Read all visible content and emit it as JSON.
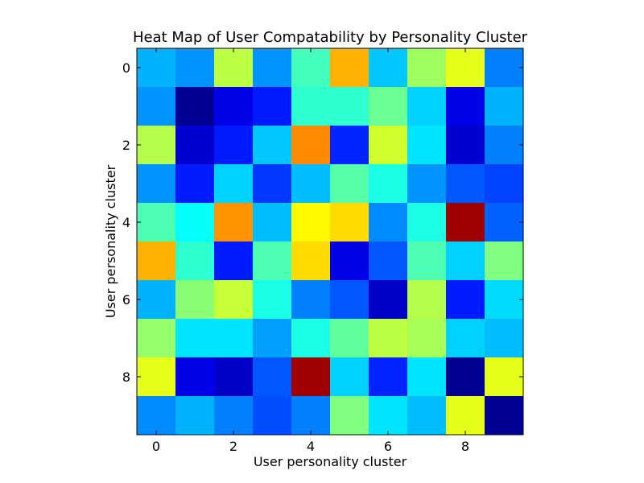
{
  "chart_data": {
    "type": "heatmap",
    "title": "Heat Map of User Compatability by Personality Cluster",
    "xlabel": "User personality cluster",
    "ylabel": "User personality cluster",
    "x_ticks": [
      "0",
      "2",
      "4",
      "6",
      "8"
    ],
    "y_ticks": [
      "0",
      "2",
      "4",
      "6",
      "8"
    ],
    "colormap": "jet",
    "grid": false,
    "matrix": [
      [
        0.3,
        0.27,
        0.56,
        0.27,
        0.44,
        0.7,
        0.32,
        0.53,
        0.6,
        0.25
      ],
      [
        0.27,
        0.02,
        0.1,
        0.15,
        0.42,
        0.42,
        0.48,
        0.33,
        0.1,
        0.3
      ],
      [
        0.55,
        0.08,
        0.15,
        0.32,
        0.74,
        0.16,
        0.58,
        0.35,
        0.08,
        0.25
      ],
      [
        0.27,
        0.15,
        0.33,
        0.18,
        0.31,
        0.46,
        0.4,
        0.27,
        0.21,
        0.19
      ],
      [
        0.45,
        0.38,
        0.73,
        0.31,
        0.63,
        0.66,
        0.26,
        0.4,
        0.97,
        0.22
      ],
      [
        0.7,
        0.42,
        0.15,
        0.45,
        0.66,
        0.1,
        0.21,
        0.45,
        0.33,
        0.5
      ],
      [
        0.3,
        0.51,
        0.57,
        0.4,
        0.25,
        0.21,
        0.07,
        0.55,
        0.15,
        0.34
      ],
      [
        0.52,
        0.35,
        0.35,
        0.28,
        0.4,
        0.47,
        0.56,
        0.54,
        0.33,
        0.31
      ],
      [
        0.6,
        0.1,
        0.07,
        0.21,
        0.97,
        0.33,
        0.16,
        0.35,
        0.02,
        0.6
      ],
      [
        0.26,
        0.3,
        0.25,
        0.2,
        0.25,
        0.5,
        0.35,
        0.31,
        0.6,
        0.02
      ]
    ]
  }
}
